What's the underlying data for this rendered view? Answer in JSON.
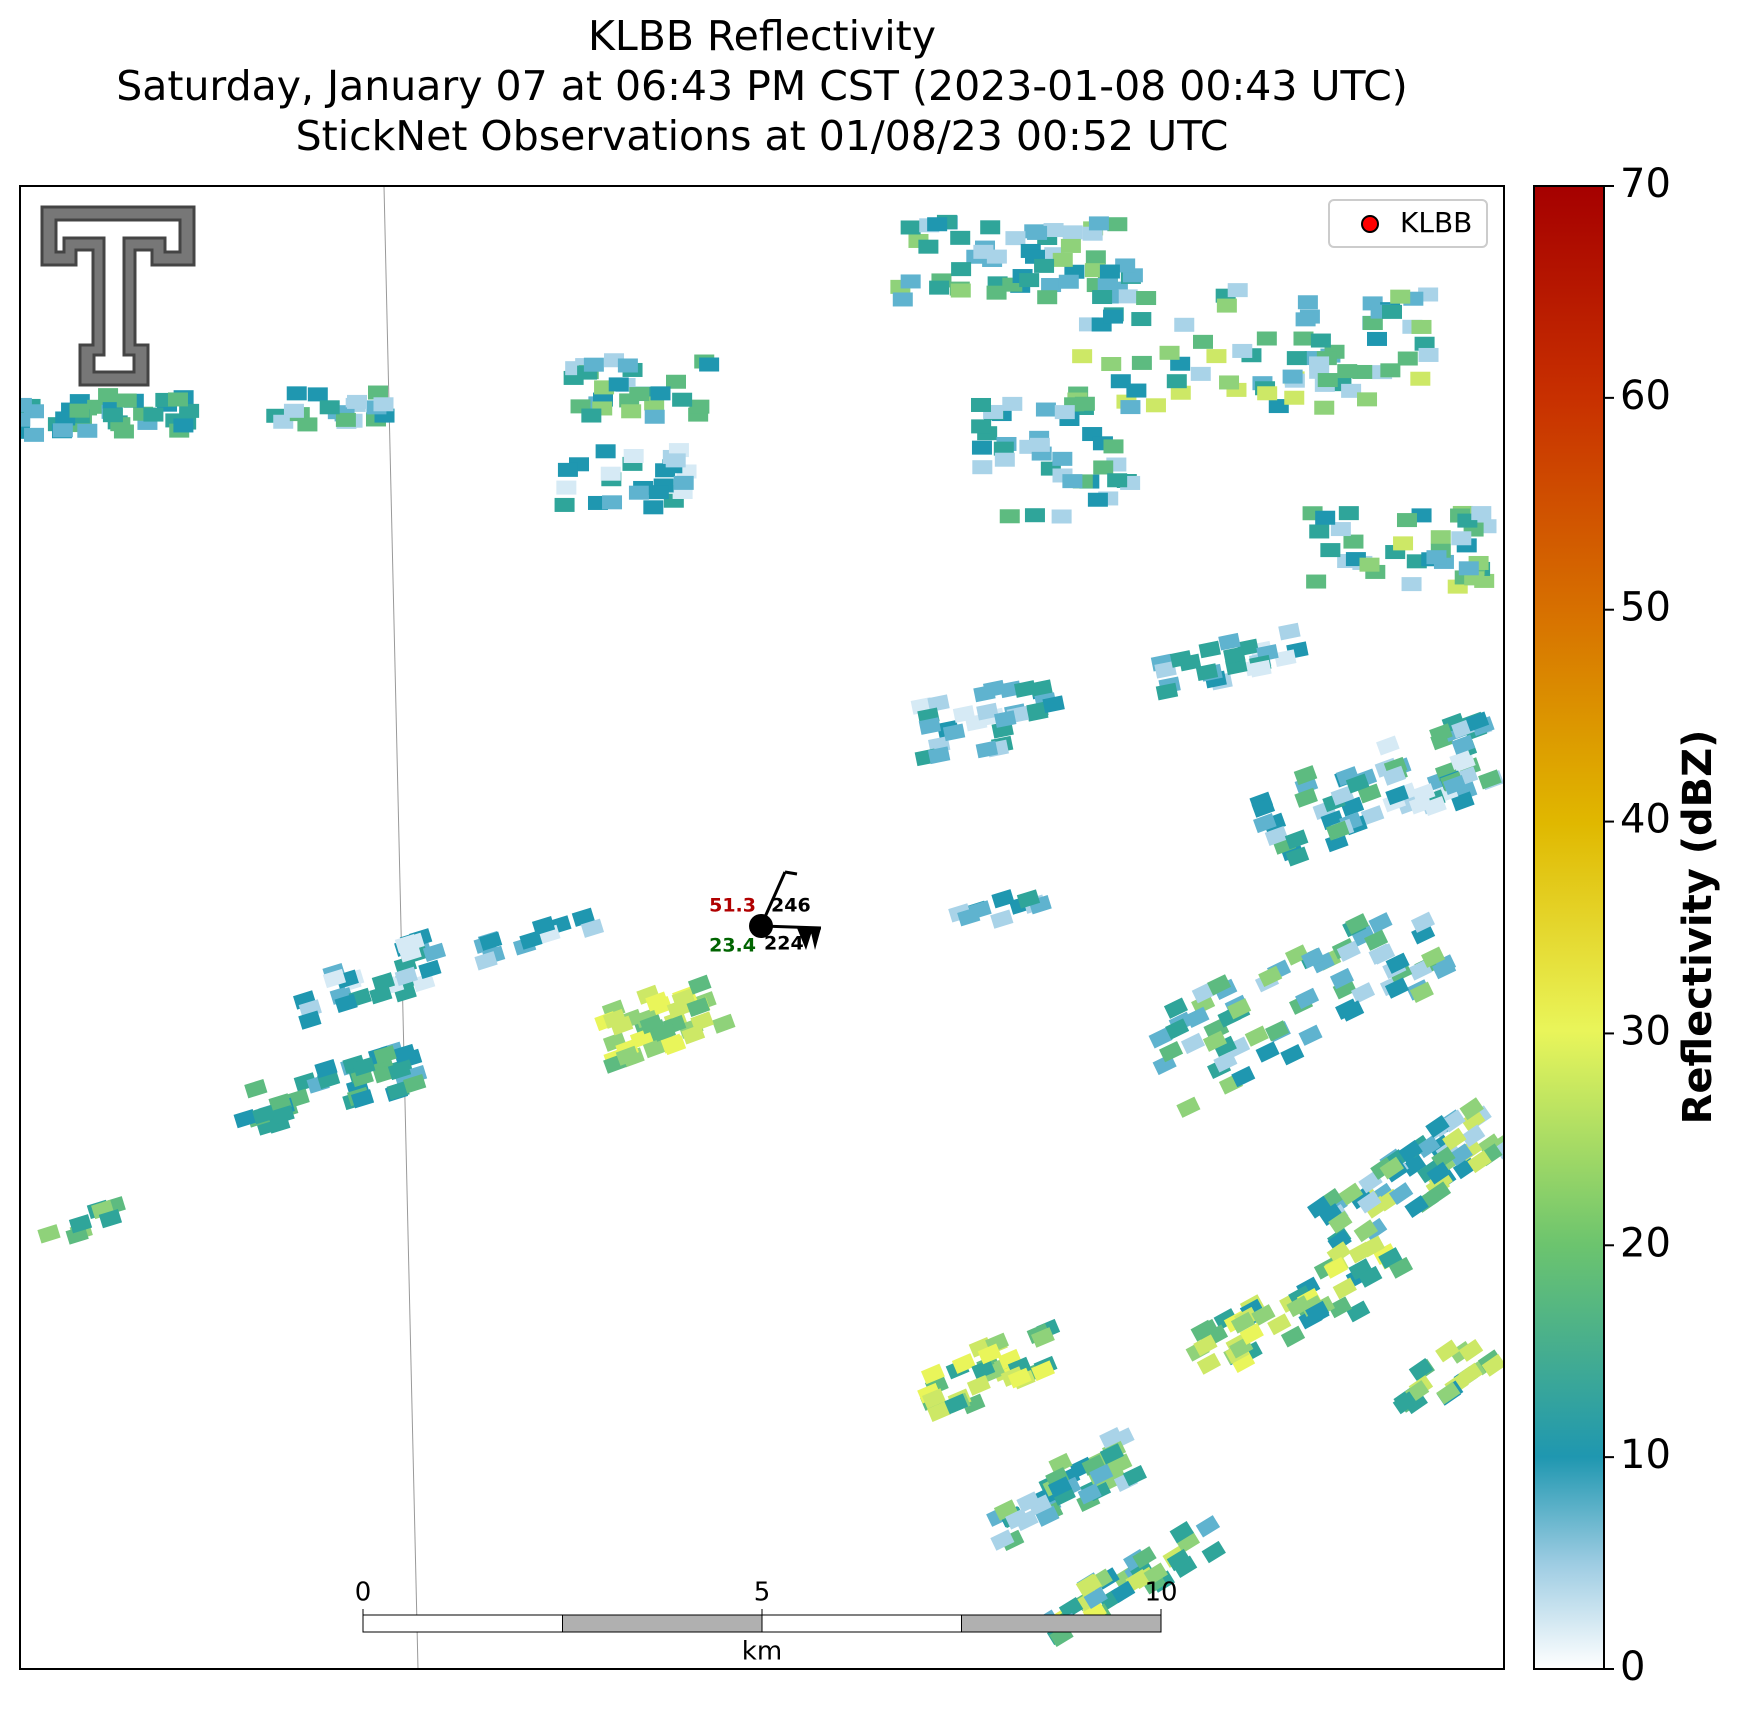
{
  "title": [
    "KLBB Reflectivity",
    "Saturday, January 07 at 06:43 PM CST (2023-01-08 00:43 UTC)",
    "StickNet Observations at 01/08/23 00:52 UTC"
  ],
  "legend": {
    "label": "KLBB",
    "color": "#ff0000"
  },
  "colorbar": {
    "label": "Reflectivity (dBZ)",
    "lim": [
      0,
      70
    ],
    "ticks": [
      0,
      10,
      20,
      30,
      40,
      50,
      60,
      70
    ]
  },
  "station": {
    "temperature": 51.3,
    "dewpoint": 23.4,
    "top_right": 246,
    "bottom_right": 224
  },
  "scale_bar": {
    "ticks": [
      0,
      5,
      10
    ],
    "unit": "km"
  }
}
